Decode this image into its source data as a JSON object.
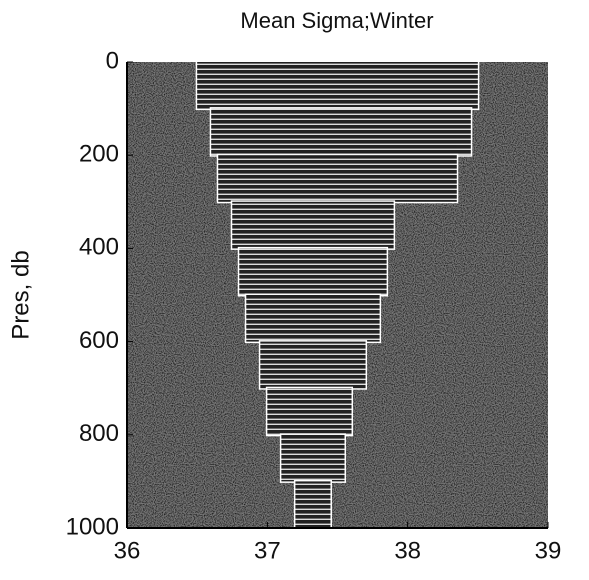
{
  "chart_data": {
    "type": "profile",
    "title": "Mean Sigma;Winter",
    "y_label": "Pres, db",
    "xlim": [
      36,
      39
    ],
    "xticks": [
      36,
      37,
      38,
      39
    ],
    "ylim": [
      0,
      1000
    ],
    "yticks": [
      0,
      200,
      400,
      600,
      800,
      1000
    ],
    "y_inverted": true,
    "pressure_edges": [
      0,
      100,
      200,
      300,
      400,
      500,
      600,
      700,
      800,
      900,
      1000
    ],
    "x_left": [
      36.5,
      36.6,
      36.65,
      36.75,
      36.8,
      36.85,
      36.95,
      37.0,
      37.1,
      37.2
    ],
    "x_right": [
      38.5,
      38.45,
      38.35,
      37.9,
      37.85,
      37.8,
      37.7,
      37.6,
      37.55,
      37.45
    ],
    "color": "#1a1a1a"
  }
}
